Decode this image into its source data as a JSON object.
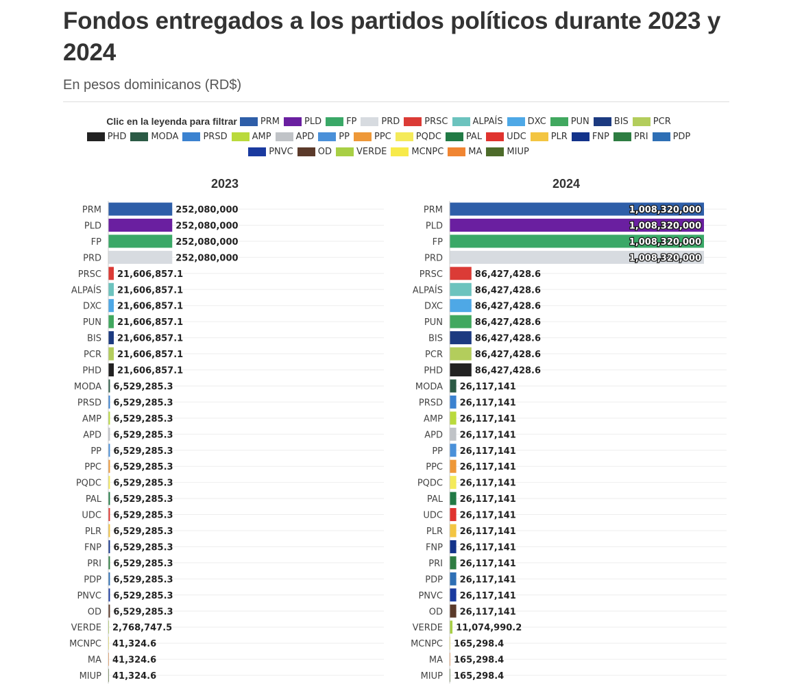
{
  "header": {
    "title": "Fondos entregados a los partidos políticos durante 2023 y 2024",
    "subtitle": "En pesos dominicanos (RD$)"
  },
  "legend": {
    "label": "Clic en la leyenda para filtrar",
    "rows": [
      [
        {
          "name": "PRM",
          "color": "#2e5ea8"
        },
        {
          "name": "PLD",
          "color": "#6a1fa0"
        },
        {
          "name": "FP",
          "color": "#3aa867"
        },
        {
          "name": "PRD",
          "color": "#d7dbe0"
        },
        {
          "name": "PRSC",
          "color": "#db3b36"
        },
        {
          "name": "ALPAÍS",
          "color": "#6cc3be"
        },
        {
          "name": "DXC",
          "color": "#4ea8e6"
        },
        {
          "name": "PUN",
          "color": "#41a85f"
        },
        {
          "name": "BIS",
          "color": "#1c3a80"
        },
        {
          "name": "PCR",
          "color": "#b3cd5c"
        }
      ],
      [
        {
          "name": "PHD",
          "color": "#222222"
        },
        {
          "name": "MODA",
          "color": "#2b5a45"
        },
        {
          "name": "PRSD",
          "color": "#3b82d0"
        },
        {
          "name": "AMP",
          "color": "#bada3c"
        },
        {
          "name": "APD",
          "color": "#c0c3c7"
        },
        {
          "name": "PP",
          "color": "#4a90d9"
        },
        {
          "name": "PPC",
          "color": "#ee9838"
        },
        {
          "name": "PQDC",
          "color": "#f4ea5a"
        },
        {
          "name": "PAL",
          "color": "#217a45"
        },
        {
          "name": "UDC",
          "color": "#e0332e"
        },
        {
          "name": "PLR",
          "color": "#f3c542"
        },
        {
          "name": "FNP",
          "color": "#13338a"
        },
        {
          "name": "PRI",
          "color": "#2e7d42"
        },
        {
          "name": "PDP",
          "color": "#2e6fb5"
        }
      ],
      [
        {
          "name": "PNVC",
          "color": "#1a3a9f"
        },
        {
          "name": "OD",
          "color": "#5b3a2a"
        },
        {
          "name": "VERDE",
          "color": "#a8cf45"
        },
        {
          "name": "MCNPC",
          "color": "#f7ea4a"
        },
        {
          "name": "MA",
          "color": "#f08532"
        },
        {
          "name": "MIUP",
          "color": "#4d6b2a"
        }
      ]
    ]
  },
  "chart_data": [
    {
      "type": "bar",
      "orientation": "horizontal",
      "title": "2023",
      "categories": [
        "PRM",
        "PLD",
        "FP",
        "PRD",
        "PRSC",
        "ALPAÍS",
        "DXC",
        "PUN",
        "BIS",
        "PCR",
        "PHD",
        "MODA",
        "PRSD",
        "AMP",
        "APD",
        "PP",
        "PPC",
        "PQDC",
        "PAL",
        "UDC",
        "PLR",
        "FNP",
        "PRI",
        "PDP",
        "PNVC",
        "OD",
        "VERDE",
        "MCNPC",
        "MA",
        "MIUP"
      ],
      "values": [
        252080000,
        252080000,
        252080000,
        252080000,
        21606857.1,
        21606857.1,
        21606857.1,
        21606857.1,
        21606857.1,
        21606857.1,
        21606857.1,
        6529285.3,
        6529285.3,
        6529285.3,
        6529285.3,
        6529285.3,
        6529285.3,
        6529285.3,
        6529285.3,
        6529285.3,
        6529285.3,
        6529285.3,
        6529285.3,
        6529285.3,
        6529285.3,
        6529285.3,
        2768747.5,
        41324.6,
        41324.6,
        41324.6
      ],
      "labels": [
        "252,080,000",
        "252,080,000",
        "252,080,000",
        "252,080,000",
        "21,606,857.1",
        "21,606,857.1",
        "21,606,857.1",
        "21,606,857.1",
        "21,606,857.1",
        "21,606,857.1",
        "21,606,857.1",
        "6,529,285.3",
        "6,529,285.3",
        "6,529,285.3",
        "6,529,285.3",
        "6,529,285.3",
        "6,529,285.3",
        "6,529,285.3",
        "6,529,285.3",
        "6,529,285.3",
        "6,529,285.3",
        "6,529,285.3",
        "6,529,285.3",
        "6,529,285.3",
        "6,529,285.3",
        "6,529,285.3",
        "2,768,747.5",
        "41,324.6",
        "41,324.6",
        "41,324.6"
      ],
      "xlim": [
        0,
        1008320000
      ]
    },
    {
      "type": "bar",
      "orientation": "horizontal",
      "title": "2024",
      "categories": [
        "PRM",
        "PLD",
        "FP",
        "PRD",
        "PRSC",
        "ALPAÍS",
        "DXC",
        "PUN",
        "BIS",
        "PCR",
        "PHD",
        "MODA",
        "PRSD",
        "AMP",
        "APD",
        "PP",
        "PPC",
        "PQDC",
        "PAL",
        "UDC",
        "PLR",
        "FNP",
        "PRI",
        "PDP",
        "PNVC",
        "OD",
        "VERDE",
        "MCNPC",
        "MA",
        "MIUP"
      ],
      "values": [
        1008320000,
        1008320000,
        1008320000,
        1008320000,
        86427428.6,
        86427428.6,
        86427428.6,
        86427428.6,
        86427428.6,
        86427428.6,
        86427428.6,
        26117141,
        26117141,
        26117141,
        26117141,
        26117141,
        26117141,
        26117141,
        26117141,
        26117141,
        26117141,
        26117141,
        26117141,
        26117141,
        26117141,
        26117141,
        11074990.2,
        165298.4,
        165298.4,
        165298.4
      ],
      "labels": [
        "1,008,320,000",
        "1,008,320,000",
        "1,008,320,000",
        "1,008,320,000",
        "86,427,428.6",
        "86,427,428.6",
        "86,427,428.6",
        "86,427,428.6",
        "86,427,428.6",
        "86,427,428.6",
        "86,427,428.6",
        "26,117,141",
        "26,117,141",
        "26,117,141",
        "26,117,141",
        "26,117,141",
        "26,117,141",
        "26,117,141",
        "26,117,141",
        "26,117,141",
        "26,117,141",
        "26,117,141",
        "26,117,141",
        "26,117,141",
        "26,117,141",
        "26,117,141",
        "11,074,990.2",
        "165,298.4",
        "165,298.4",
        "165,298.4"
      ],
      "xlim": [
        0,
        1008320000
      ]
    }
  ]
}
